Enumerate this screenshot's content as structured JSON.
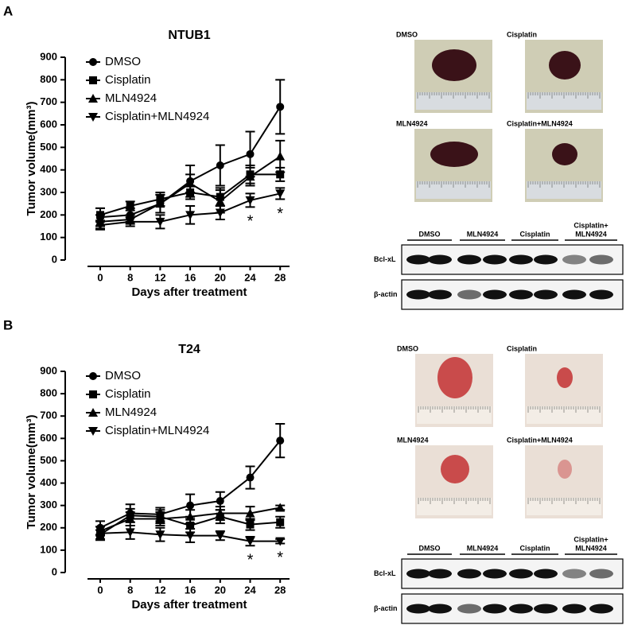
{
  "chart_data": [
    {
      "type": "line",
      "panel": "A",
      "title": "NTUB1",
      "categories": [
        "0",
        "8",
        "12",
        "16",
        "20",
        "24",
        "28"
      ],
      "xlabel": "Days after treatment",
      "ylabel": "Tumor volume(mm³)",
      "ylim": [
        0,
        900
      ],
      "yticks": [
        0,
        100,
        200,
        300,
        400,
        500,
        600,
        700,
        800,
        900
      ],
      "series": [
        {
          "name": "DMSO",
          "color": "#000000",
          "marker": "circle",
          "values": [
            190,
            200,
            250,
            350,
            420,
            470,
            680
          ],
          "errors": [
            40,
            30,
            40,
            70,
            90,
            100,
            120
          ]
        },
        {
          "name": "Cisplatin",
          "color": "#000000",
          "marker": "square",
          "values": [
            200,
            240,
            270,
            300,
            280,
            380,
            380
          ],
          "errors": [
            30,
            20,
            30,
            30,
            40,
            40,
            30
          ]
        },
        {
          "name": "MLN4924",
          "color": "#000000",
          "marker": "triangle",
          "values": [
            170,
            180,
            250,
            340,
            260,
            370,
            460
          ],
          "errors": [
            30,
            20,
            40,
            40,
            50,
            40,
            70
          ]
        },
        {
          "name": "Cisplatin+MLN4924",
          "color": "#000000",
          "marker": "triangle-down",
          "values": [
            155,
            170,
            170,
            200,
            210,
            265,
            295
          ],
          "errors": [
            20,
            20,
            30,
            40,
            30,
            30,
            25
          ]
        }
      ],
      "annotations": [
        {
          "text": "*",
          "category": "24",
          "color": "#d9622b"
        },
        {
          "text": "*",
          "category": "28",
          "color": "#2e75b6"
        }
      ]
    },
    {
      "type": "line",
      "panel": "B",
      "title": "T24",
      "categories": [
        "0",
        "8",
        "12",
        "16",
        "20",
        "24",
        "28"
      ],
      "xlabel": "Days after treatment",
      "ylabel": "Tumor volume(mm³)",
      "ylim": [
        0,
        900
      ],
      "yticks": [
        0,
        100,
        200,
        300,
        400,
        500,
        600,
        700,
        800,
        900
      ],
      "series": [
        {
          "name": "DMSO",
          "color": "#000000",
          "marker": "circle",
          "values": [
            200,
            265,
            260,
            300,
            320,
            425,
            590
          ],
          "errors": [
            30,
            40,
            30,
            50,
            40,
            50,
            75
          ]
        },
        {
          "name": "Cisplatin",
          "color": "#000000",
          "marker": "square",
          "values": [
            170,
            255,
            250,
            210,
            250,
            215,
            225
          ],
          "errors": [
            20,
            30,
            30,
            30,
            30,
            25,
            25
          ]
        },
        {
          "name": "MLN4924",
          "color": "#000000",
          "marker": "triangle",
          "values": [
            185,
            240,
            240,
            250,
            265,
            265,
            290
          ],
          "errors": [
            20,
            30,
            30,
            30,
            30,
            30,
            10
          ]
        },
        {
          "name": "Cisplatin+MLN4924",
          "color": "#000000",
          "marker": "triangle-down",
          "values": [
            175,
            180,
            170,
            165,
            165,
            140,
            140
          ],
          "errors": [
            30,
            30,
            30,
            30,
            20,
            20,
            10
          ]
        }
      ],
      "annotations": [
        {
          "text": "*",
          "category": "24",
          "color": "#2e75b6"
        },
        {
          "text": "*",
          "category": "28",
          "color": "#2e75b6"
        }
      ]
    }
  ],
  "figure": {
    "panels": [
      {
        "photos": [
          "DMSO",
          "Cisplatin",
          "MLN4924",
          "Cisplatin+MLN4924"
        ],
        "blot_groups": [
          [
            "DMSO"
          ],
          [
            "MLN4924"
          ],
          [
            "Cisplatin"
          ],
          [
            "Cisplatin+",
            "MLN4924"
          ]
        ],
        "blot_rows": [
          "Bcl-xL",
          "β-actin"
        ]
      },
      {
        "photos": [
          "DMSO",
          "Cisplatin",
          "MLN4924",
          "Cisplatin+MLN4924"
        ],
        "blot_groups": [
          [
            "DMSO"
          ],
          [
            "MLN4924"
          ],
          [
            "Cisplatin"
          ],
          [
            "Cisplatin+",
            "MLN4924"
          ]
        ],
        "blot_rows": [
          "Bcl-xL",
          "β-actin"
        ]
      }
    ]
  }
}
